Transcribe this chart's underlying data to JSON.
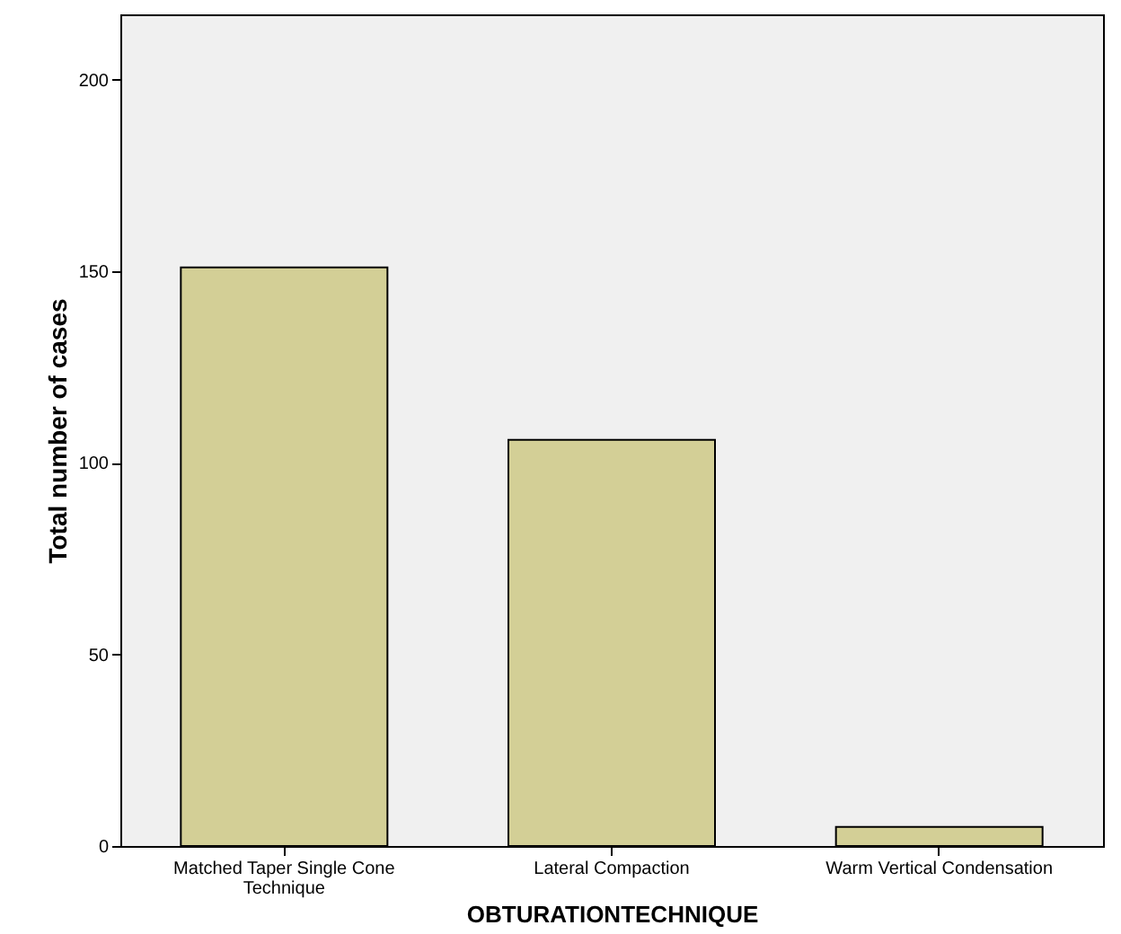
{
  "chart_data": {
    "type": "bar",
    "xlabel": "OBTURATIONTECHNIQUE",
    "ylabel": "Total number of cases",
    "categories": [
      "Matched Taper Single Cone Technique",
      "Lateral Compaction",
      "Warm Vertical Condensation"
    ],
    "values": [
      151,
      106,
      5
    ],
    "color": "#d3cf96",
    "ylim": [
      0,
      217
    ],
    "yticks": [
      0,
      50,
      100,
      150,
      200
    ],
    "grid": false
  }
}
